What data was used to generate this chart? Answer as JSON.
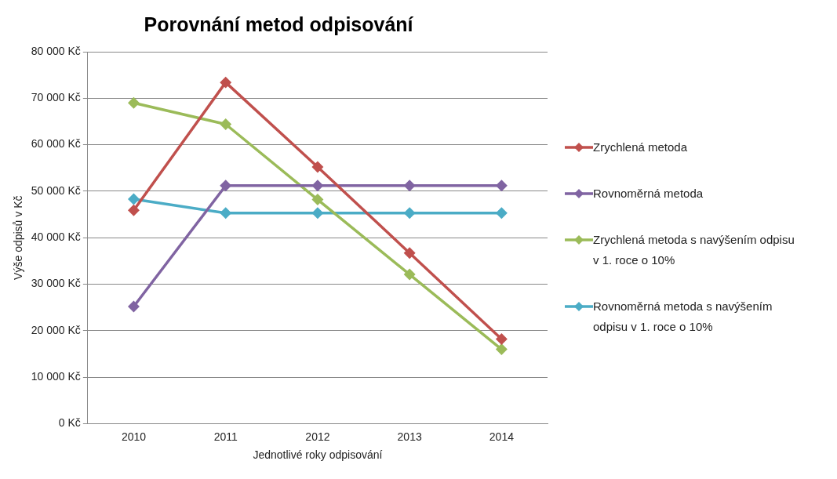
{
  "chart_data": {
    "type": "line",
    "title": "Porovnání metod odpisování",
    "xlabel": "Jednotlivé roky odpisování",
    "ylabel": "Výše odpisů v Kč",
    "categories": [
      "2010",
      "2011",
      "2012",
      "2013",
      "2014"
    ],
    "series": [
      {
        "name": "Zrychlená metoda",
        "color": "#c0504d",
        "values": [
          45900,
          73400,
          55200,
          36700,
          18200
        ]
      },
      {
        "name": "Rovnoměrná metoda",
        "color": "#8064a2",
        "values": [
          25200,
          51200,
          51200,
          51200,
          51200
        ]
      },
      {
        "name": "Zrychlená metoda s navýšením odpisu v 1. roce o 10%",
        "color": "#9bbb59",
        "values": [
          69000,
          64400,
          48200,
          32100,
          16000
        ]
      },
      {
        "name": "Rovnoměrná metoda s navýšením odpisu v 1. roce o 10%",
        "color": "#4bacc6",
        "values": [
          48300,
          45300,
          45300,
          45300,
          45300
        ]
      }
    ],
    "ylim": [
      0,
      80000
    ],
    "yticks": [
      {
        "value": 0,
        "label": "0 Kč"
      },
      {
        "value": 10000,
        "label": "10 000 Kč"
      },
      {
        "value": 20000,
        "label": "20 000 Kč"
      },
      {
        "value": 30000,
        "label": "30 000 Kč"
      },
      {
        "value": 40000,
        "label": "40 000 Kč"
      },
      {
        "value": 50000,
        "label": "50 000 Kč"
      },
      {
        "value": 60000,
        "label": "60 000 Kč"
      },
      {
        "value": 70000,
        "label": "70 000 Kč"
      },
      {
        "value": 80000,
        "label": "80 000 Kč"
      }
    ],
    "grid": "y",
    "legend": "right",
    "marker": "diamond",
    "line_style": "solid"
  }
}
